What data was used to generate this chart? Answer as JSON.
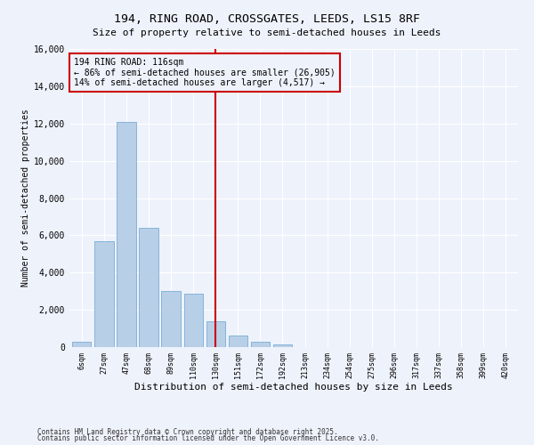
{
  "title1": "194, RING ROAD, CROSSGATES, LEEDS, LS15 8RF",
  "title2": "Size of property relative to semi-detached houses in Leeds",
  "xlabel": "Distribution of semi-detached houses by size in Leeds",
  "ylabel": "Number of semi-detached properties",
  "categories": [
    "6sqm",
    "27sqm",
    "47sqm",
    "68sqm",
    "89sqm",
    "110sqm",
    "130sqm",
    "151sqm",
    "172sqm",
    "192sqm",
    "213sqm",
    "234sqm",
    "254sqm",
    "275sqm",
    "296sqm",
    "317sqm",
    "337sqm",
    "358sqm",
    "399sqm",
    "420sqm"
  ],
  "values": [
    300,
    5700,
    12100,
    6400,
    3000,
    2850,
    1400,
    600,
    280,
    120,
    0,
    0,
    0,
    0,
    0,
    0,
    0,
    0,
    0,
    0
  ],
  "bar_color": "#b8cfe8",
  "bar_edge_color": "#7aadd4",
  "vline_x": 6.0,
  "vline_color": "#cc0000",
  "annotation_text": "194 RING ROAD: 116sqm\n← 86% of semi-detached houses are smaller (26,905)\n14% of semi-detached houses are larger (4,517) →",
  "annotation_box_facecolor": "#eef2fb",
  "annotation_box_edgecolor": "#cc0000",
  "ylim": [
    0,
    16000
  ],
  "yticks": [
    0,
    2000,
    4000,
    6000,
    8000,
    10000,
    12000,
    14000,
    16000
  ],
  "bg_color": "#eef2fb",
  "grid_color": "#ffffff",
  "footer1": "Contains HM Land Registry data © Crown copyright and database right 2025.",
  "footer2": "Contains public sector information licensed under the Open Government Licence v3.0."
}
